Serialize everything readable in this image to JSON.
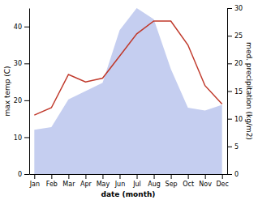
{
  "chart_data": {
    "type": "line",
    "x_label": "date (month)",
    "y_label": "max temp (C)",
    "y2_label": "med. precipitation (kg/m2)",
    "categories": [
      "Jan",
      "Feb",
      "Mar",
      "Apr",
      "May",
      "Jun",
      "Jul",
      "Aug",
      "Sep",
      "Oct",
      "Nov",
      "Dec"
    ],
    "series": [
      {
        "type": "area",
        "axis": "y2",
        "color": "#c5cef0",
        "values": [
          8.0,
          8.5,
          13.5,
          15.0,
          16.5,
          26.0,
          30.0,
          28.0,
          19.0,
          12.0,
          11.5,
          12.5
        ]
      },
      {
        "type": "line",
        "color": "#c0392b",
        "values": [
          16.0,
          18.0,
          27.0,
          25.0,
          26.0,
          32.0,
          38.0,
          41.5,
          41.5,
          35.0,
          24.0,
          19.0
        ]
      }
    ],
    "ylim": [
      0,
      45
    ],
    "yticks": [
      0,
      10,
      20,
      30,
      40
    ],
    "y2lim": [
      0,
      30
    ],
    "y2ticks": [
      0,
      5,
      10,
      15,
      20,
      25,
      30
    ],
    "grid": false
  }
}
